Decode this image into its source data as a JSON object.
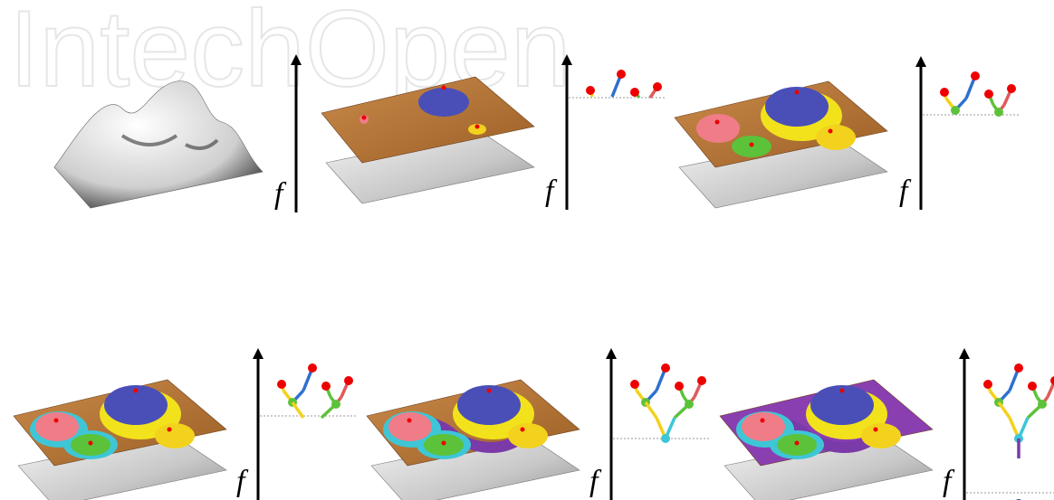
{
  "watermark": "IntechOpen",
  "panels": [
    {
      "axis_label": "f"
    },
    {
      "axis_label": "f"
    },
    {
      "axis_label": "f"
    },
    {
      "axis_label": "f"
    },
    {
      "axis_label": "f"
    },
    {
      "axis_label": "f"
    }
  ]
}
